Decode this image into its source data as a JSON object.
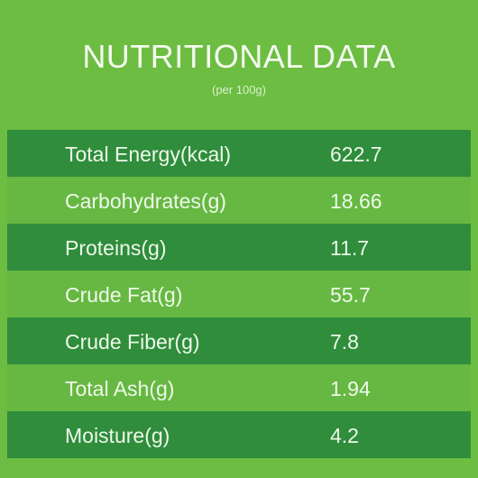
{
  "header": {
    "title": "NUTRITIONAL DATA",
    "subtitle": "(per 100g)"
  },
  "table": {
    "rows": [
      [
        "Total Energy(kcal)",
        622.7
      ],
      [
        "Carbohydrates(g)",
        18.66
      ],
      [
        "Proteins(g)",
        11.7
      ],
      [
        "Crude Fat(g)",
        55.7
      ],
      [
        "Crude Fiber(g)",
        7.8
      ],
      [
        "Total Ash(g)",
        1.94
      ],
      [
        "Moisture(g)",
        4.2
      ]
    ]
  }
}
